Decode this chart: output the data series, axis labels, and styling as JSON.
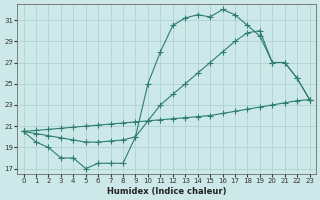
{
  "line1_x": [
    0,
    1,
    2,
    3,
    4,
    5,
    6,
    7,
    8,
    9,
    10,
    11,
    12,
    13,
    14,
    15,
    16,
    17,
    18,
    19,
    20,
    21,
    22,
    23
  ],
  "line1_y": [
    20.5,
    19.5,
    19.0,
    18.0,
    18.0,
    17.0,
    17.5,
    17.5,
    17.5,
    20.0,
    25.0,
    28.0,
    30.5,
    31.2,
    31.5,
    31.3,
    32.0,
    31.5,
    30.5,
    29.5,
    27.0,
    27.0,
    25.5,
    23.5
  ],
  "line2_x": [
    0,
    1,
    2,
    3,
    4,
    5,
    6,
    7,
    8,
    9,
    10,
    11,
    12,
    13,
    14,
    15,
    16,
    17,
    18,
    19,
    20,
    21,
    22,
    23
  ],
  "line2_y": [
    20.5,
    20.3,
    20.1,
    19.9,
    19.7,
    19.5,
    19.5,
    19.6,
    19.7,
    20.0,
    21.5,
    23.0,
    24.0,
    25.0,
    26.0,
    27.0,
    28.0,
    29.0,
    29.8,
    30.0,
    27.0,
    27.0,
    25.5,
    23.5
  ],
  "line3_x": [
    0,
    1,
    2,
    3,
    4,
    5,
    6,
    7,
    8,
    9,
    10,
    11,
    12,
    13,
    14,
    15,
    16,
    17,
    18,
    19,
    20,
    21,
    22,
    23
  ],
  "line3_y": [
    20.5,
    20.6,
    20.7,
    20.8,
    20.9,
    21.0,
    21.1,
    21.2,
    21.3,
    21.4,
    21.5,
    21.6,
    21.7,
    21.8,
    21.9,
    22.0,
    22.2,
    22.4,
    22.6,
    22.8,
    23.0,
    23.2,
    23.4,
    23.5
  ],
  "color": "#2d7d6f",
  "bg_color": "#cde8e8",
  "grid_color": "#aacece",
  "xlabel": "Humidex (Indice chaleur)",
  "xlim": [
    -0.5,
    23.5
  ],
  "ylim": [
    16.5,
    32.5
  ],
  "yticks": [
    17,
    19,
    21,
    23,
    25,
    27,
    29,
    31
  ],
  "xticks": [
    0,
    1,
    2,
    3,
    4,
    5,
    6,
    7,
    8,
    9,
    10,
    11,
    12,
    13,
    14,
    15,
    16,
    17,
    18,
    19,
    20,
    21,
    22,
    23
  ],
  "figsize": [
    3.2,
    2.0
  ],
  "dpi": 100
}
